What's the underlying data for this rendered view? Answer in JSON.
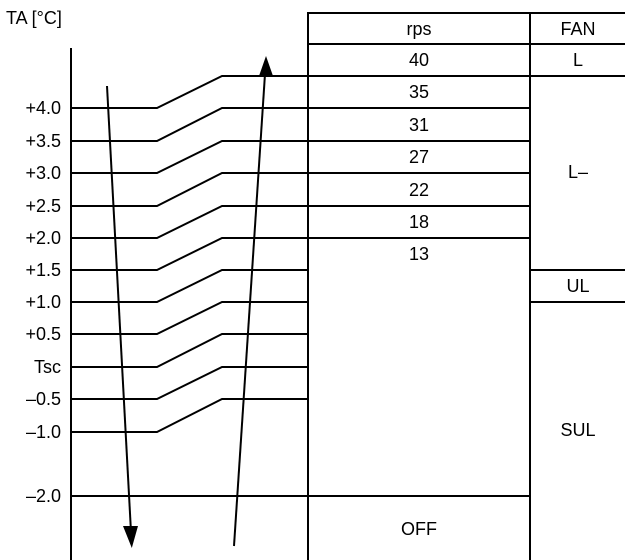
{
  "diagram": {
    "axis_label": "TA [°C]",
    "ta_levels": [
      {
        "label": "+4.0"
      },
      {
        "label": "+3.5"
      },
      {
        "label": "+3.0"
      },
      {
        "label": "+2.5"
      },
      {
        "label": "+2.0"
      },
      {
        "label": "+1.5"
      },
      {
        "label": "+1.0"
      },
      {
        "label": "+0.5"
      },
      {
        "label": "Tsc"
      },
      {
        "label": "–0.5"
      },
      {
        "label": "–1.0"
      },
      {
        "label": "–2.0"
      }
    ],
    "rps_header": "rps",
    "rps_values": [
      "40",
      "35",
      "31",
      "27",
      "22",
      "18",
      "13"
    ],
    "off_label": "OFF",
    "fan_header": "FAN",
    "fan_modes": [
      "L",
      "L–",
      "UL",
      "SUL"
    ]
  }
}
